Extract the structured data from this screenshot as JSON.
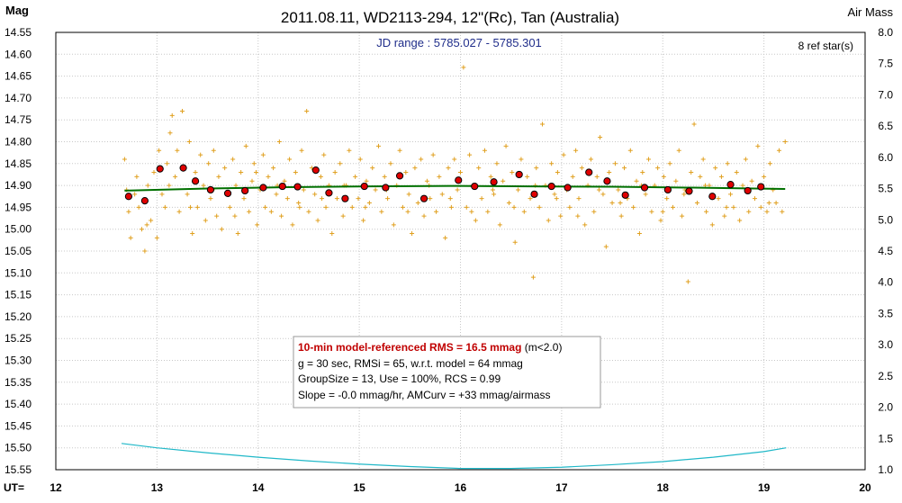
{
  "chart_data": {
    "type": "scatter",
    "title": "2011.08.11, WD2113-294, 12\"(Rc), Tan (Australia)",
    "ylabel": "Mag",
    "y2label": "Air Mass",
    "xlabel": "UT=",
    "subtitle": "JD range : 5785.027 - 5785.301",
    "ref_stars": "8 ref star(s)",
    "xlim": [
      12,
      20
    ],
    "ylim": [
      14.55,
      15.55
    ],
    "y_inverted": true,
    "y2lim": [
      1.0,
      8.0
    ],
    "grid": true,
    "x_ticks": [
      "12",
      "13",
      "14",
      "15",
      "16",
      "17",
      "18",
      "19",
      "20"
    ],
    "y_ticks": [
      "14.55",
      "14.60",
      "14.65",
      "14.70",
      "14.75",
      "14.80",
      "14.85",
      "14.90",
      "14.95",
      "15.00",
      "15.05",
      "15.10",
      "15.15",
      "15.20",
      "15.25",
      "15.30",
      "15.35",
      "15.40",
      "15.45",
      "15.50",
      "15.55"
    ],
    "y2_ticks": [
      "8.0",
      "7.5",
      "7.0",
      "6.5",
      "6.0",
      "5.5",
      "5.0",
      "4.5",
      "4.0",
      "3.5",
      "3.0",
      "2.5",
      "2.0",
      "1.5",
      "1.0"
    ],
    "raw_points": {
      "color": "#e0a020",
      "points": [
        [
          12.68,
          14.84
        ],
        [
          12.72,
          14.96
        ],
        [
          12.74,
          15.02
        ],
        [
          12.78,
          14.92
        ],
        [
          12.8,
          14.88
        ],
        [
          12.82,
          14.95
        ],
        [
          12.85,
          15.0
        ],
        [
          12.88,
          15.05
        ],
        [
          12.91,
          14.9
        ],
        [
          12.94,
          14.98
        ],
        [
          12.97,
          14.87
        ],
        [
          13.0,
          15.02
        ],
        [
          13.02,
          14.82
        ],
        [
          13.05,
          14.92
        ],
        [
          13.08,
          14.95
        ],
        [
          13.1,
          14.85
        ],
        [
          13.13,
          14.78
        ],
        [
          13.15,
          14.74
        ],
        [
          13.18,
          14.88
        ],
        [
          13.2,
          14.82
        ],
        [
          13.22,
          14.96
        ],
        [
          13.25,
          14.73
        ],
        [
          13.27,
          14.86
        ],
        [
          13.3,
          14.92
        ],
        [
          13.32,
          14.8
        ],
        [
          13.35,
          15.01
        ],
        [
          13.38,
          14.87
        ],
        [
          13.4,
          14.95
        ],
        [
          13.43,
          14.83
        ],
        [
          13.46,
          14.9
        ],
        [
          13.48,
          14.98
        ],
        [
          13.51,
          14.85
        ],
        [
          13.53,
          14.93
        ],
        [
          13.56,
          14.82
        ],
        [
          13.59,
          14.97
        ],
        [
          13.61,
          14.88
        ],
        [
          13.64,
          15.0
        ],
        [
          13.67,
          14.86
        ],
        [
          13.7,
          14.92
        ],
        [
          13.72,
          14.95
        ],
        [
          13.75,
          14.84
        ],
        [
          13.78,
          14.9
        ],
        [
          13.8,
          15.01
        ],
        [
          13.83,
          14.87
        ],
        [
          13.86,
          14.93
        ],
        [
          13.88,
          14.81
        ],
        [
          13.91,
          14.96
        ],
        [
          13.94,
          14.89
        ],
        [
          13.96,
          14.85
        ],
        [
          13.99,
          14.99
        ],
        [
          14.02,
          14.91
        ],
        [
          14.05,
          14.83
        ],
        [
          14.07,
          14.95
        ],
        [
          14.1,
          14.88
        ],
        [
          14.13,
          14.96
        ],
        [
          14.15,
          14.86
        ],
        [
          14.18,
          14.92
        ],
        [
          14.21,
          14.8
        ],
        [
          14.23,
          14.97
        ],
        [
          14.26,
          14.89
        ],
        [
          14.29,
          14.93
        ],
        [
          14.31,
          14.84
        ],
        [
          14.34,
          14.99
        ],
        [
          14.37,
          14.87
        ],
        [
          14.4,
          14.94
        ],
        [
          14.43,
          14.82
        ],
        [
          14.45,
          14.91
        ],
        [
          14.48,
          14.73
        ],
        [
          14.5,
          14.96
        ],
        [
          14.53,
          14.86
        ],
        [
          14.56,
          14.92
        ],
        [
          14.59,
          14.98
        ],
        [
          14.62,
          14.88
        ],
        [
          14.65,
          14.83
        ],
        [
          14.67,
          14.95
        ],
        [
          14.7,
          14.9
        ],
        [
          14.73,
          15.01
        ],
        [
          14.76,
          14.87
        ],
        [
          14.78,
          14.93
        ],
        [
          14.81,
          14.85
        ],
        [
          14.84,
          14.97
        ],
        [
          14.87,
          14.9
        ],
        [
          14.9,
          14.82
        ],
        [
          14.93,
          14.95
        ],
        [
          14.96,
          14.88
        ],
        [
          14.99,
          14.93
        ],
        [
          15.01,
          14.84
        ],
        [
          15.04,
          14.98
        ],
        [
          15.07,
          14.89
        ],
        [
          15.1,
          14.94
        ],
        [
          15.13,
          14.86
        ],
        [
          15.16,
          14.91
        ],
        [
          15.19,
          14.81
        ],
        [
          15.22,
          14.96
        ],
        [
          15.25,
          14.88
        ],
        [
          15.28,
          14.93
        ],
        [
          15.31,
          14.85
        ],
        [
          15.34,
          14.99
        ],
        [
          15.37,
          14.9
        ],
        [
          15.4,
          14.82
        ],
        [
          15.43,
          14.95
        ],
        [
          15.46,
          14.87
        ],
        [
          15.49,
          14.92
        ],
        [
          15.52,
          15.01
        ],
        [
          15.55,
          14.86
        ],
        [
          15.58,
          14.94
        ],
        [
          15.61,
          14.84
        ],
        [
          15.64,
          14.97
        ],
        [
          15.67,
          14.89
        ],
        [
          15.7,
          14.93
        ],
        [
          15.73,
          14.83
        ],
        [
          15.76,
          14.96
        ],
        [
          15.79,
          14.88
        ],
        [
          15.82,
          14.92
        ],
        [
          15.85,
          15.02
        ],
        [
          15.88,
          14.86
        ],
        [
          15.91,
          14.95
        ],
        [
          15.94,
          14.84
        ],
        [
          15.97,
          14.91
        ],
        [
          16.0,
          14.87
        ],
        [
          16.03,
          14.63
        ],
        [
          16.06,
          14.95
        ],
        [
          16.09,
          14.83
        ],
        [
          16.12,
          14.9
        ],
        [
          16.15,
          14.98
        ],
        [
          16.18,
          14.86
        ],
        [
          16.21,
          14.93
        ],
        [
          16.24,
          14.82
        ],
        [
          16.27,
          14.96
        ],
        [
          16.3,
          14.88
        ],
        [
          16.33,
          14.92
        ],
        [
          16.36,
          14.85
        ],
        [
          16.39,
          14.99
        ],
        [
          16.42,
          14.89
        ],
        [
          16.45,
          14.81
        ],
        [
          16.48,
          14.94
        ],
        [
          16.51,
          14.87
        ],
        [
          16.54,
          15.03
        ],
        [
          16.57,
          14.91
        ],
        [
          16.6,
          14.84
        ],
        [
          16.63,
          14.96
        ],
        [
          16.66,
          14.88
        ],
        [
          16.69,
          14.93
        ],
        [
          16.72,
          15.11
        ],
        [
          16.75,
          14.86
        ],
        [
          16.78,
          14.95
        ],
        [
          16.81,
          14.76
        ],
        [
          16.84,
          14.9
        ],
        [
          16.87,
          14.98
        ],
        [
          16.9,
          14.85
        ],
        [
          16.93,
          14.92
        ],
        [
          16.96,
          14.87
        ],
        [
          16.99,
          14.97
        ],
        [
          17.02,
          14.83
        ],
        [
          17.05,
          14.91
        ],
        [
          17.08,
          14.95
        ],
        [
          17.11,
          14.88
        ],
        [
          17.14,
          14.82
        ],
        [
          17.17,
          14.93
        ],
        [
          17.2,
          14.86
        ],
        [
          17.23,
          14.99
        ],
        [
          17.26,
          14.9
        ],
        [
          17.29,
          14.84
        ],
        [
          17.32,
          14.96
        ],
        [
          17.35,
          14.88
        ],
        [
          17.38,
          14.79
        ],
        [
          17.41,
          14.92
        ],
        [
          17.44,
          15.04
        ],
        [
          17.47,
          14.87
        ],
        [
          17.5,
          14.94
        ],
        [
          17.53,
          14.85
        ],
        [
          17.56,
          14.91
        ],
        [
          17.59,
          14.97
        ],
        [
          17.62,
          14.86
        ],
        [
          17.65,
          14.93
        ],
        [
          17.68,
          14.82
        ],
        [
          17.71,
          14.95
        ],
        [
          17.74,
          14.89
        ],
        [
          17.77,
          15.01
        ],
        [
          17.8,
          14.87
        ],
        [
          17.83,
          14.92
        ],
        [
          17.86,
          14.84
        ],
        [
          17.89,
          14.96
        ],
        [
          17.92,
          14.9
        ],
        [
          17.95,
          14.86
        ],
        [
          17.98,
          14.98
        ],
        [
          18.01,
          14.88
        ],
        [
          18.04,
          14.93
        ],
        [
          18.07,
          14.85
        ],
        [
          18.1,
          14.95
        ],
        [
          18.13,
          14.89
        ],
        [
          18.16,
          14.82
        ],
        [
          18.19,
          14.97
        ],
        [
          18.22,
          14.91
        ],
        [
          18.25,
          15.12
        ],
        [
          18.28,
          14.87
        ],
        [
          18.31,
          14.76
        ],
        [
          18.34,
          14.94
        ],
        [
          18.37,
          14.88
        ],
        [
          18.4,
          14.84
        ],
        [
          18.43,
          14.96
        ],
        [
          18.46,
          14.9
        ],
        [
          18.49,
          14.99
        ],
        [
          18.52,
          14.86
        ],
        [
          18.55,
          14.93
        ],
        [
          18.58,
          14.88
        ],
        [
          18.61,
          14.97
        ],
        [
          18.64,
          14.85
        ],
        [
          18.67,
          14.92
        ],
        [
          18.7,
          14.95
        ],
        [
          18.73,
          14.87
        ],
        [
          18.76,
          14.98
        ],
        [
          18.79,
          14.9
        ],
        [
          18.82,
          14.84
        ],
        [
          18.85,
          14.96
        ],
        [
          18.88,
          14.89
        ],
        [
          18.91,
          14.93
        ],
        [
          18.94,
          14.81
        ],
        [
          18.97,
          14.95
        ],
        [
          19.0,
          14.88
        ],
        [
          19.03,
          14.96
        ],
        [
          19.06,
          14.85
        ],
        [
          19.09,
          14.91
        ],
        [
          19.12,
          14.94
        ],
        [
          19.15,
          14.82
        ],
        [
          19.18,
          14.96
        ],
        [
          19.21,
          14.8
        ],
        [
          12.7,
          14.91
        ],
        [
          12.9,
          14.99
        ],
        [
          13.12,
          14.9
        ],
        [
          13.33,
          14.95
        ],
        [
          13.55,
          14.91
        ],
        [
          13.77,
          14.97
        ],
        [
          13.98,
          14.87
        ],
        [
          14.19,
          14.9
        ],
        [
          14.41,
          14.95
        ],
        [
          14.63,
          14.93
        ],
        [
          14.85,
          14.9
        ],
        [
          15.06,
          14.95
        ],
        [
          15.27,
          14.91
        ],
        [
          15.48,
          14.96
        ],
        [
          15.69,
          14.9
        ],
        [
          15.9,
          14.93
        ],
        [
          16.11,
          14.96
        ],
        [
          16.32,
          14.91
        ],
        [
          16.53,
          14.95
        ],
        [
          16.74,
          14.9
        ],
        [
          16.95,
          14.93
        ],
        [
          17.16,
          14.97
        ],
        [
          17.37,
          14.91
        ],
        [
          17.58,
          14.94
        ],
        [
          17.79,
          14.9
        ],
        [
          18.0,
          14.96
        ],
        [
          18.21,
          14.92
        ],
        [
          18.42,
          14.9
        ],
        [
          18.63,
          14.95
        ],
        [
          18.84,
          14.91
        ],
        [
          19.05,
          14.94
        ]
      ]
    },
    "binned_points": {
      "color": "#e00000",
      "points": [
        [
          12.72,
          14.925
        ],
        [
          12.88,
          14.935
        ],
        [
          13.03,
          14.862
        ],
        [
          13.26,
          14.86
        ],
        [
          13.38,
          14.89
        ],
        [
          13.53,
          14.91
        ],
        [
          13.7,
          14.918
        ],
        [
          13.87,
          14.912
        ],
        [
          14.05,
          14.905
        ],
        [
          14.24,
          14.902
        ],
        [
          14.39,
          14.903
        ],
        [
          14.57,
          14.865
        ],
        [
          14.7,
          14.917
        ],
        [
          14.86,
          14.93
        ],
        [
          15.05,
          14.902
        ],
        [
          15.26,
          14.905
        ],
        [
          15.4,
          14.878
        ],
        [
          15.64,
          14.93
        ],
        [
          15.98,
          14.888
        ],
        [
          16.14,
          14.902
        ],
        [
          16.33,
          14.892
        ],
        [
          16.58,
          14.875
        ],
        [
          16.73,
          14.92
        ],
        [
          16.9,
          14.902
        ],
        [
          17.06,
          14.905
        ],
        [
          17.27,
          14.87
        ],
        [
          17.45,
          14.89
        ],
        [
          17.63,
          14.922
        ],
        [
          17.82,
          14.905
        ],
        [
          18.05,
          14.91
        ],
        [
          18.26,
          14.913
        ],
        [
          18.49,
          14.925
        ],
        [
          18.67,
          14.898
        ],
        [
          18.84,
          14.912
        ],
        [
          18.97,
          14.903
        ]
      ]
    },
    "model_line": {
      "color": "#007000",
      "x": [
        12.68,
        13.5,
        14.3,
        15.1,
        15.9,
        16.7,
        17.5,
        18.3,
        19.21
      ],
      "y": [
        14.912,
        14.907,
        14.904,
        14.902,
        14.901,
        14.902,
        14.903,
        14.905,
        14.908
      ]
    },
    "airmass_curve": {
      "color": "#20b8c8",
      "x": [
        12.65,
        13.0,
        13.5,
        14.0,
        14.5,
        15.0,
        15.5,
        16.0,
        16.5,
        17.0,
        17.5,
        18.0,
        18.5,
        19.0,
        19.22
      ],
      "y": [
        1.42,
        1.35,
        1.27,
        1.2,
        1.14,
        1.09,
        1.05,
        1.02,
        1.02,
        1.04,
        1.08,
        1.13,
        1.2,
        1.29,
        1.35
      ]
    },
    "info_box": {
      "line1": "10-min model-referenced RMS = 16.5 mmag",
      "line1_suffix": " (m<2.0)",
      "line2": "g = 30 sec, RMSi = 65, w.r.t. model = 64 mmag",
      "line3": "GroupSize = 13, Use = 100%, RCS = 0.99",
      "line4": "Slope = -0.0 mmag/hr, AMCurv = +33 mmag/airmass"
    }
  }
}
